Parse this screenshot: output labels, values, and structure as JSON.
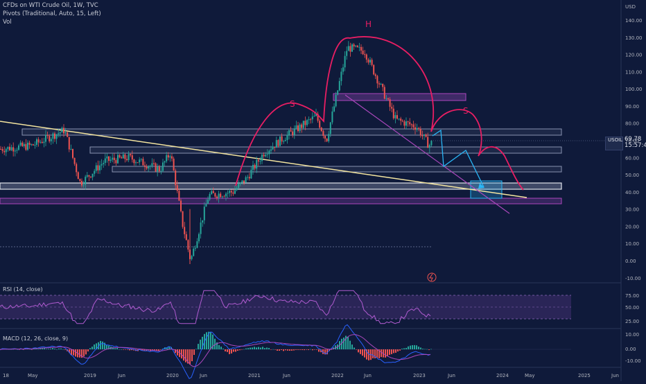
{
  "header": {
    "title": "CFDs on WTI Crude Oil, 1W, TVC",
    "pivots": "Pivots (Traditional, Auto, 15, Left)",
    "vol": "Vol"
  },
  "price_axis": {
    "unit": "USD",
    "ticks": [
      "140.00",
      "130.00",
      "120.00",
      "110.00",
      "100.00",
      "90.00",
      "80.00",
      "70.00",
      "60.00",
      "50.00",
      "40.00",
      "30.00",
      "20.00",
      "10.00",
      "0.00",
      "-10.00"
    ]
  },
  "symbol_badge": "USOIL",
  "last_price": {
    "value": "69.78",
    "countdown": "15:57:42"
  },
  "pattern_labels": {
    "left_shoulder": "S",
    "head": "H",
    "right_shoulder": "S"
  },
  "time_axis": [
    "18",
    "May",
    "2019",
    "Jun",
    "2020",
    "Jun",
    "2021",
    "Jun",
    "2022",
    "Jun",
    "2023",
    "Jun",
    "2024",
    "May",
    "2025",
    "Jun"
  ],
  "rsi": {
    "label": "RSI (14, close)",
    "ticks": [
      "75.00",
      "50.00",
      "25.00"
    ]
  },
  "macd": {
    "label": "MACD (12, 26, close, 9)",
    "ticks": [
      "10.00",
      "0.00",
      "-10.00"
    ]
  },
  "colors": {
    "background": "#0f1a3a",
    "candle_up": "#26a69a",
    "candle_down": "#ef5350",
    "pattern": "#e91e63",
    "trendline": "#f5e6a0",
    "channel": "#ab47bc",
    "projection": "#29b6f6"
  },
  "chart_data": {
    "type": "line",
    "title": "CFDs on WTI Crude Oil, 1W, TVC",
    "ylabel": "USD",
    "ylim": [
      -10,
      145
    ],
    "x": [
      "2018-03",
      "2018-06",
      "2018-10",
      "2018-12",
      "2019-03",
      "2019-06",
      "2019-10",
      "2020-01",
      "2020-03",
      "2020-04",
      "2020-06",
      "2020-09",
      "2020-12",
      "2021-03",
      "2021-06",
      "2021-10",
      "2021-12",
      "2022-03",
      "2022-06",
      "2022-09",
      "2022-12",
      "2023-03",
      "2023-04"
    ],
    "series": [
      {
        "values": [
          65,
          67,
          76,
          45,
          58,
          60,
          53,
          63,
          22,
          0,
          38,
          40,
          48,
          63,
          72,
          84,
          70,
          124,
          122,
          82,
          78,
          67,
          69.78
        ]
      }
    ]
  }
}
